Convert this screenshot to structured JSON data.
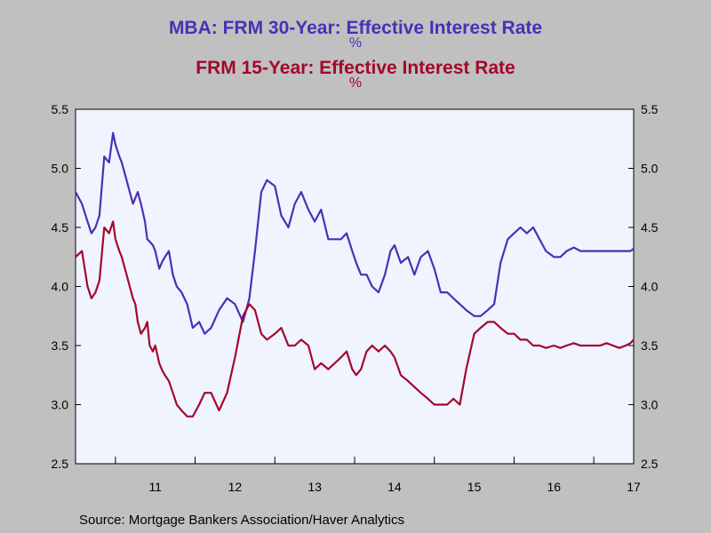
{
  "titles": [
    {
      "text": "MBA: FRM 30-Year: Effective Interest Rate",
      "unit": "%",
      "color": "#4b2fb8"
    },
    {
      "text": "FRM 15-Year: Effective Interest Rate",
      "unit": "%",
      "color": "#a3082c"
    }
  ],
  "source": "Source:  Mortgage Bankers Association/Haver Analytics",
  "chart_data": {
    "type": "line",
    "title": "",
    "xlabel": "",
    "ylabel": "",
    "ylim": [
      2.5,
      5.5
    ],
    "xlim": [
      2010.0,
      2017.0
    ],
    "yticks": [
      2.5,
      3.0,
      3.5,
      4.0,
      4.5,
      5.0,
      5.5
    ],
    "y_tick_labels": [
      "2.5",
      "3.0",
      "3.5",
      "4.0",
      "4.5",
      "5.0",
      "5.5"
    ],
    "x_tick_labels": [
      {
        "label": "11",
        "x": 2011.0
      },
      {
        "label": "12",
        "x": 2012.0
      },
      {
        "label": "13",
        "x": 2013.0
      },
      {
        "label": "14",
        "x": 2014.0
      },
      {
        "label": "15",
        "x": 2015.0
      },
      {
        "label": "16",
        "x": 2016.0
      },
      {
        "label": "17",
        "x": 2017.0
      }
    ],
    "year_boundaries": [
      2010.5,
      2011.5,
      2012.5,
      2013.5,
      2014.5,
      2015.5,
      2016.5
    ],
    "grid": false,
    "plot_background": "#f0f4ff",
    "series": [
      {
        "name": "MBA: FRM 30-Year: Effective Interest Rate",
        "color": "#4b2fb8",
        "x": [
          2010.0,
          2010.08,
          2010.15,
          2010.2,
          2010.25,
          2010.3,
          2010.36,
          2010.42,
          2010.47,
          2010.5,
          2010.55,
          2010.58,
          2010.62,
          2010.68,
          2010.72,
          2010.75,
          2010.78,
          2010.82,
          2010.87,
          2010.9,
          2010.93,
          2010.97,
          2011.0,
          2011.05,
          2011.08,
          2011.12,
          2011.17,
          2011.22,
          2011.27,
          2011.33,
          2011.4,
          2011.47,
          2011.55,
          2011.62,
          2011.7,
          2011.8,
          2011.9,
          2012.0,
          2012.1,
          2012.18,
          2012.25,
          2012.33,
          2012.4,
          2012.5,
          2012.58,
          2012.67,
          2012.75,
          2012.83,
          2012.92,
          2013.0,
          2013.08,
          2013.17,
          2013.25,
          2013.33,
          2013.4,
          2013.47,
          2013.52,
          2013.58,
          2013.65,
          2013.72,
          2013.8,
          2013.88,
          2013.95,
          2014.0,
          2014.08,
          2014.17,
          2014.25,
          2014.33,
          2014.42,
          2014.5,
          2014.58,
          2014.66,
          2014.74,
          2014.82,
          2014.9,
          2015.0,
          2015.08,
          2015.17,
          2015.25,
          2015.33,
          2015.42,
          2015.5,
          2015.58,
          2015.66,
          2015.74,
          2015.82,
          2015.9,
          2016.0,
          2016.08,
          2016.16,
          2016.25,
          2016.33,
          2016.42,
          2016.5,
          2016.58,
          2016.66,
          2016.74,
          2016.82,
          2016.9,
          2016.96,
          2017.0
        ],
        "values": [
          4.8,
          4.7,
          4.55,
          4.45,
          4.5,
          4.6,
          5.1,
          5.05,
          5.3,
          5.2,
          5.1,
          5.05,
          4.95,
          4.8,
          4.7,
          4.75,
          4.8,
          4.7,
          4.55,
          4.4,
          4.38,
          4.35,
          4.3,
          4.15,
          4.2,
          4.25,
          4.3,
          4.1,
          4.0,
          3.95,
          3.85,
          3.65,
          3.7,
          3.6,
          3.65,
          3.8,
          3.9,
          3.85,
          3.7,
          3.9,
          4.3,
          4.8,
          4.9,
          4.85,
          4.6,
          4.5,
          4.7,
          4.8,
          4.65,
          4.55,
          4.65,
          4.4,
          4.4,
          4.4,
          4.45,
          4.3,
          4.2,
          4.1,
          4.1,
          4.0,
          3.95,
          4.1,
          4.3,
          4.35,
          4.2,
          4.25,
          4.1,
          4.25,
          4.3,
          4.15,
          3.95,
          3.95,
          3.9,
          3.85,
          3.8,
          3.75,
          3.75,
          3.8,
          3.85,
          4.2,
          4.4,
          4.45,
          4.5,
          4.45,
          4.5,
          4.4,
          4.3,
          4.25,
          4.25,
          4.3,
          4.33,
          4.3,
          4.3,
          4.3,
          4.3,
          4.3,
          4.3,
          4.3,
          4.3,
          4.3,
          4.32
        ]
      },
      {
        "name": "FRM 15-Year: Effective Interest Rate",
        "color": "#a3082c",
        "x": [
          2010.0,
          2010.08,
          2010.15,
          2010.2,
          2010.25,
          2010.3,
          2010.36,
          2010.42,
          2010.47,
          2010.5,
          2010.55,
          2010.58,
          2010.62,
          2010.68,
          2010.72,
          2010.75,
          2010.78,
          2010.82,
          2010.87,
          2010.9,
          2010.93,
          2010.97,
          2011.0,
          2011.05,
          2011.08,
          2011.12,
          2011.17,
          2011.22,
          2011.27,
          2011.33,
          2011.4,
          2011.47,
          2011.55,
          2011.62,
          2011.7,
          2011.8,
          2011.9,
          2012.0,
          2012.1,
          2012.18,
          2012.25,
          2012.33,
          2012.4,
          2012.5,
          2012.58,
          2012.67,
          2012.75,
          2012.83,
          2012.92,
          2013.0,
          2013.08,
          2013.17,
          2013.25,
          2013.33,
          2013.4,
          2013.47,
          2013.52,
          2013.58,
          2013.65,
          2013.72,
          2013.8,
          2013.88,
          2013.95,
          2014.0,
          2014.08,
          2014.17,
          2014.25,
          2014.33,
          2014.42,
          2014.5,
          2014.58,
          2014.66,
          2014.74,
          2014.82,
          2014.9,
          2015.0,
          2015.08,
          2015.17,
          2015.25,
          2015.33,
          2015.42,
          2015.5,
          2015.58,
          2015.66,
          2015.74,
          2015.82,
          2015.9,
          2016.0,
          2016.08,
          2016.16,
          2016.25,
          2016.33,
          2016.42,
          2016.5,
          2016.58,
          2016.66,
          2016.74,
          2016.82,
          2016.9,
          2016.96,
          2017.0
        ],
        "values": [
          4.25,
          4.3,
          4.0,
          3.9,
          3.95,
          4.05,
          4.5,
          4.45,
          4.55,
          4.4,
          4.3,
          4.25,
          4.15,
          4.0,
          3.9,
          3.85,
          3.7,
          3.6,
          3.65,
          3.7,
          3.5,
          3.45,
          3.5,
          3.35,
          3.3,
          3.25,
          3.2,
          3.1,
          3.0,
          2.95,
          2.9,
          2.9,
          3.0,
          3.1,
          3.1,
          2.95,
          3.1,
          3.4,
          3.75,
          3.85,
          3.8,
          3.6,
          3.55,
          3.6,
          3.65,
          3.5,
          3.5,
          3.55,
          3.5,
          3.3,
          3.35,
          3.3,
          3.35,
          3.4,
          3.45,
          3.3,
          3.25,
          3.3,
          3.45,
          3.5,
          3.45,
          3.5,
          3.45,
          3.4,
          3.25,
          3.2,
          3.15,
          3.1,
          3.05,
          3.0,
          3.0,
          3.0,
          3.05,
          3.0,
          3.3,
          3.6,
          3.65,
          3.7,
          3.7,
          3.65,
          3.6,
          3.6,
          3.55,
          3.55,
          3.5,
          3.5,
          3.48,
          3.5,
          3.48,
          3.5,
          3.52,
          3.5,
          3.5,
          3.5,
          3.5,
          3.52,
          3.5,
          3.48,
          3.5,
          3.52,
          3.55
        ]
      }
    ]
  }
}
